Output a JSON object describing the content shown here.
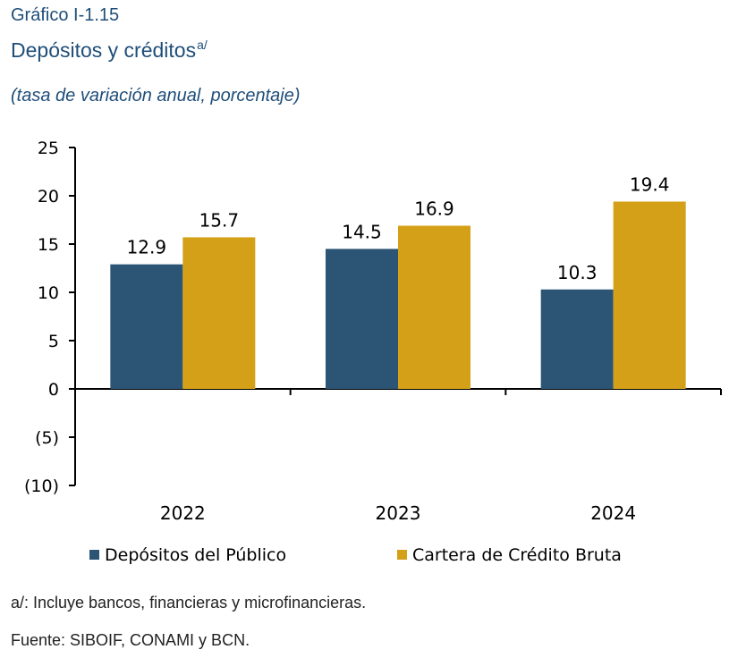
{
  "header": {
    "label": "Gráfico I-1.15",
    "title": "Depósitos y créditos",
    "title_sup": "a/",
    "subtitle": "(tasa de variación anual, porcentaje)"
  },
  "chart_data": {
    "type": "bar",
    "categories": [
      "2022",
      "2023",
      "2024"
    ],
    "series": [
      {
        "name": "Depósitos del Público",
        "values": [
          12.9,
          14.5,
          10.3
        ],
        "color": "#2c5475"
      },
      {
        "name": "Cartera de Crédito Bruta",
        "values": [
          15.7,
          16.9,
          19.4
        ],
        "color": "#d4a017"
      }
    ],
    "ylim": [
      -10,
      25
    ],
    "yticks": [
      25,
      20,
      15,
      10,
      5,
      0,
      -5,
      -10
    ],
    "ytick_labels": [
      "25",
      "20",
      "15",
      "10",
      "5",
      "0",
      "(5)",
      "(10)"
    ],
    "data_labels": [
      [
        "12.9",
        "14.5",
        "10.3"
      ],
      [
        "15.7",
        "16.9",
        "19.4"
      ]
    ],
    "legend_position": "bottom",
    "grid": false
  },
  "footer": {
    "note": "a/: Incluye bancos, financieras y microfinancieras.",
    "source": "Fuente: SIBOIF, CONAMI y BCN."
  }
}
